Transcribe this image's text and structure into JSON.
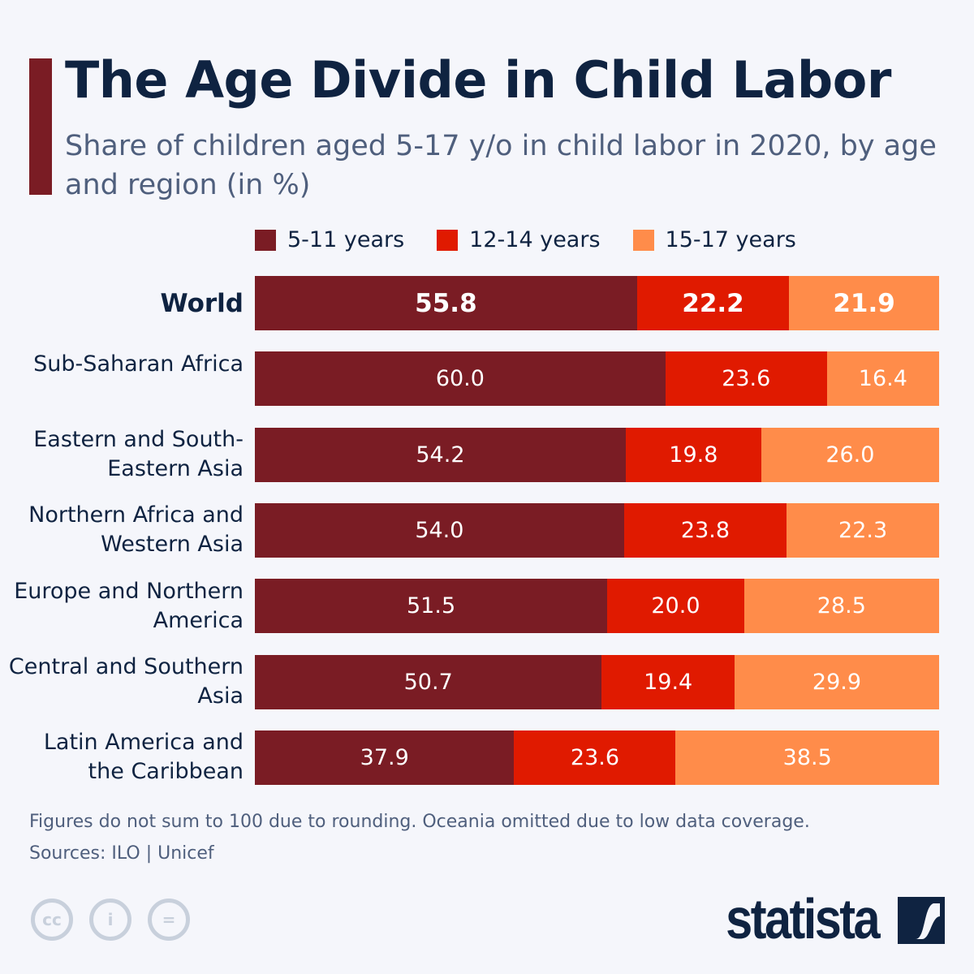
{
  "title": "The Age Divide in Child Labor",
  "subtitle": "Share of children aged 5-17 y/o in child labor in 2020, by age and region (in %)",
  "footnote": "Figures do not sum to 100 due to rounding. Oceania omitted due to low data coverage.",
  "sources": "Sources: ILO | Unicef",
  "brand": "statista",
  "icons": [
    "cc-icon",
    "attribution-icon",
    "no-derivatives-icon"
  ],
  "chart_data": {
    "type": "bar",
    "stacked": true,
    "orientation": "horizontal",
    "categories": [
      "World",
      "Sub-Saharan Africa",
      "Eastern and South-Eastern Asia",
      "Northern Africa and Western Asia",
      "Europe and Northern America",
      "Central and Southern Asia",
      "Latin America and the Caribbean"
    ],
    "series": [
      {
        "name": "5-11 years",
        "color": "#7a1c24",
        "values": [
          55.8,
          60.0,
          54.2,
          54.0,
          51.5,
          50.7,
          37.9
        ]
      },
      {
        "name": "12-14 years",
        "color": "#e01a00",
        "values": [
          22.2,
          23.6,
          19.8,
          23.8,
          20.0,
          19.4,
          23.6
        ]
      },
      {
        "name": "15-17 years",
        "color": "#ff8c4a",
        "values": [
          21.9,
          16.4,
          26.0,
          22.3,
          28.5,
          29.9,
          38.5
        ]
      }
    ],
    "legend": "top",
    "grid": false
  }
}
